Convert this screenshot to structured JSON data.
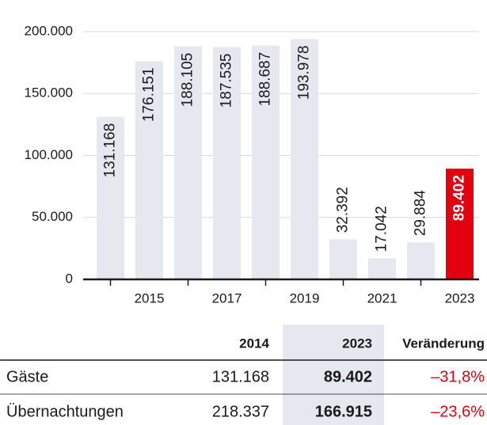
{
  "chart_data": {
    "type": "bar",
    "categories": [
      null,
      "2015",
      null,
      "2017",
      null,
      "2019",
      null,
      "2021",
      null,
      "2023"
    ],
    "values": [
      131168,
      176151,
      188105,
      187535,
      188687,
      193978,
      32392,
      17042,
      29884,
      89402
    ],
    "value_labels": [
      "131.168",
      "176.151",
      "188.105",
      "187.535",
      "188.687",
      "193.978",
      "32.392",
      "17.042",
      "29.884",
      "89.402"
    ],
    "colors": [
      "#e5e8ee",
      "#e5e8ee",
      "#e5e8ee",
      "#e5e8ee",
      "#e5e8ee",
      "#e5e8ee",
      "#e5e8ee",
      "#e5e8ee",
      "#e5e8ee",
      "#e3000f"
    ],
    "ylim": [
      0,
      200000
    ],
    "yticks": [
      0,
      {
        "value": 50000,
        "label": "50.000"
      },
      {
        "value": 100000,
        "label": "100.000"
      },
      {
        "value": 150000,
        "label": "150.000"
      },
      {
        "value": 200000,
        "label": "200.000"
      }
    ],
    "grid": true
  },
  "table": {
    "columns": [
      "2014",
      "2023",
      "Veränderung"
    ],
    "rows": [
      {
        "label": "Gäste",
        "cells": [
          "131.168",
          "89.402",
          "–31,8%"
        ]
      },
      {
        "label": "Übernachtungen",
        "cells": [
          "218.337",
          "166.915",
          "–23,6%"
        ]
      }
    ]
  }
}
